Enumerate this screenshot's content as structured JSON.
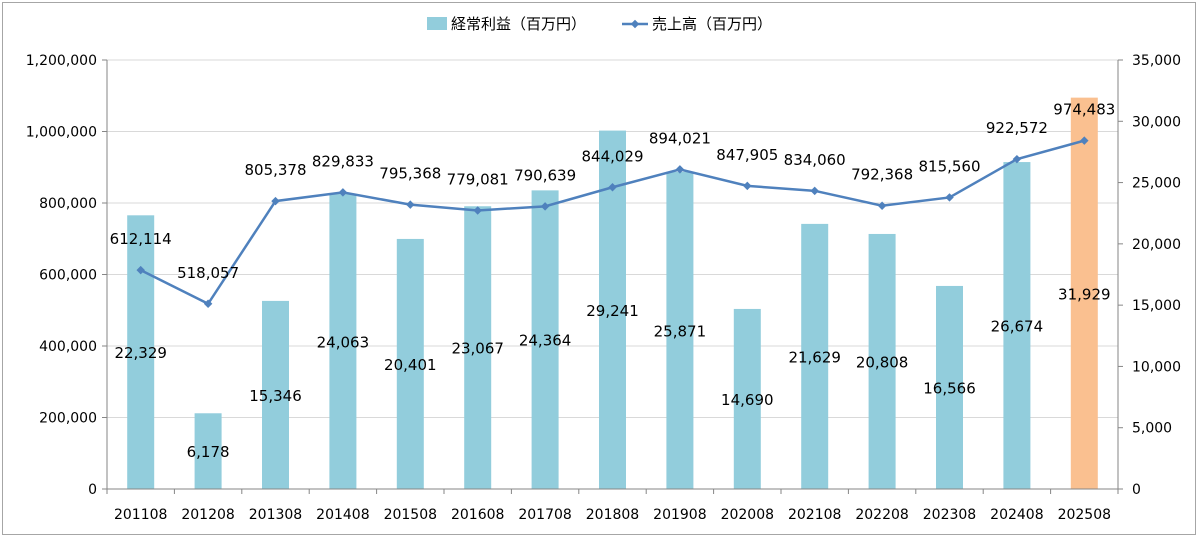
{
  "chart_data": {
    "type": "bar+line",
    "categories": [
      "201108",
      "201208",
      "201308",
      "201408",
      "201508",
      "201608",
      "201708",
      "201808",
      "201908",
      "202008",
      "202108",
      "202208",
      "202308",
      "202408",
      "202508"
    ],
    "series": [
      {
        "name": "経常利益（百万円）",
        "type": "bar",
        "axis": "right",
        "values": [
          22329,
          6178,
          15346,
          24063,
          20401,
          23067,
          24364,
          29241,
          25871,
          14690,
          21629,
          20808,
          16566,
          26674,
          31929
        ],
        "labels": [
          "22,329",
          "6,178",
          "15,346",
          "24,063",
          "20,401",
          "23,067",
          "24,364",
          "29,241",
          "25,871",
          "14,690",
          "21,629",
          "20,808",
          "16,566",
          "26,674",
          "31,929"
        ],
        "color": "#92cddc",
        "highlight_last_color": "#fac090"
      },
      {
        "name": "売上高（百万円）",
        "type": "line",
        "axis": "left",
        "values": [
          612114,
          518057,
          805378,
          829833,
          795368,
          779081,
          790639,
          844029,
          894021,
          847905,
          834060,
          792368,
          815560,
          922572,
          974483
        ],
        "labels": [
          "612,114",
          "518,057",
          "805,378",
          "829,833",
          "795,368",
          "779,081",
          "790,639",
          "844,029",
          "894,021",
          "847,905",
          "834,060",
          "792,368",
          "815,560",
          "922,572",
          "974,483"
        ],
        "color": "#4f81bd"
      }
    ],
    "highlight_label_color": "#ff0000",
    "y_left": {
      "min": 0,
      "max": 1200000,
      "step": 200000,
      "tick_labels": [
        "0",
        "200,000",
        "400,000",
        "600,000",
        "800,000",
        "1,000,000",
        "1,200,000"
      ]
    },
    "y_right": {
      "min": 0,
      "max": 35000,
      "step": 5000,
      "tick_labels": [
        "0",
        "5,000",
        "10,000",
        "15,000",
        "20,000",
        "25,000",
        "30,000",
        "35,000"
      ]
    },
    "grid": true,
    "legend_position": "top"
  }
}
